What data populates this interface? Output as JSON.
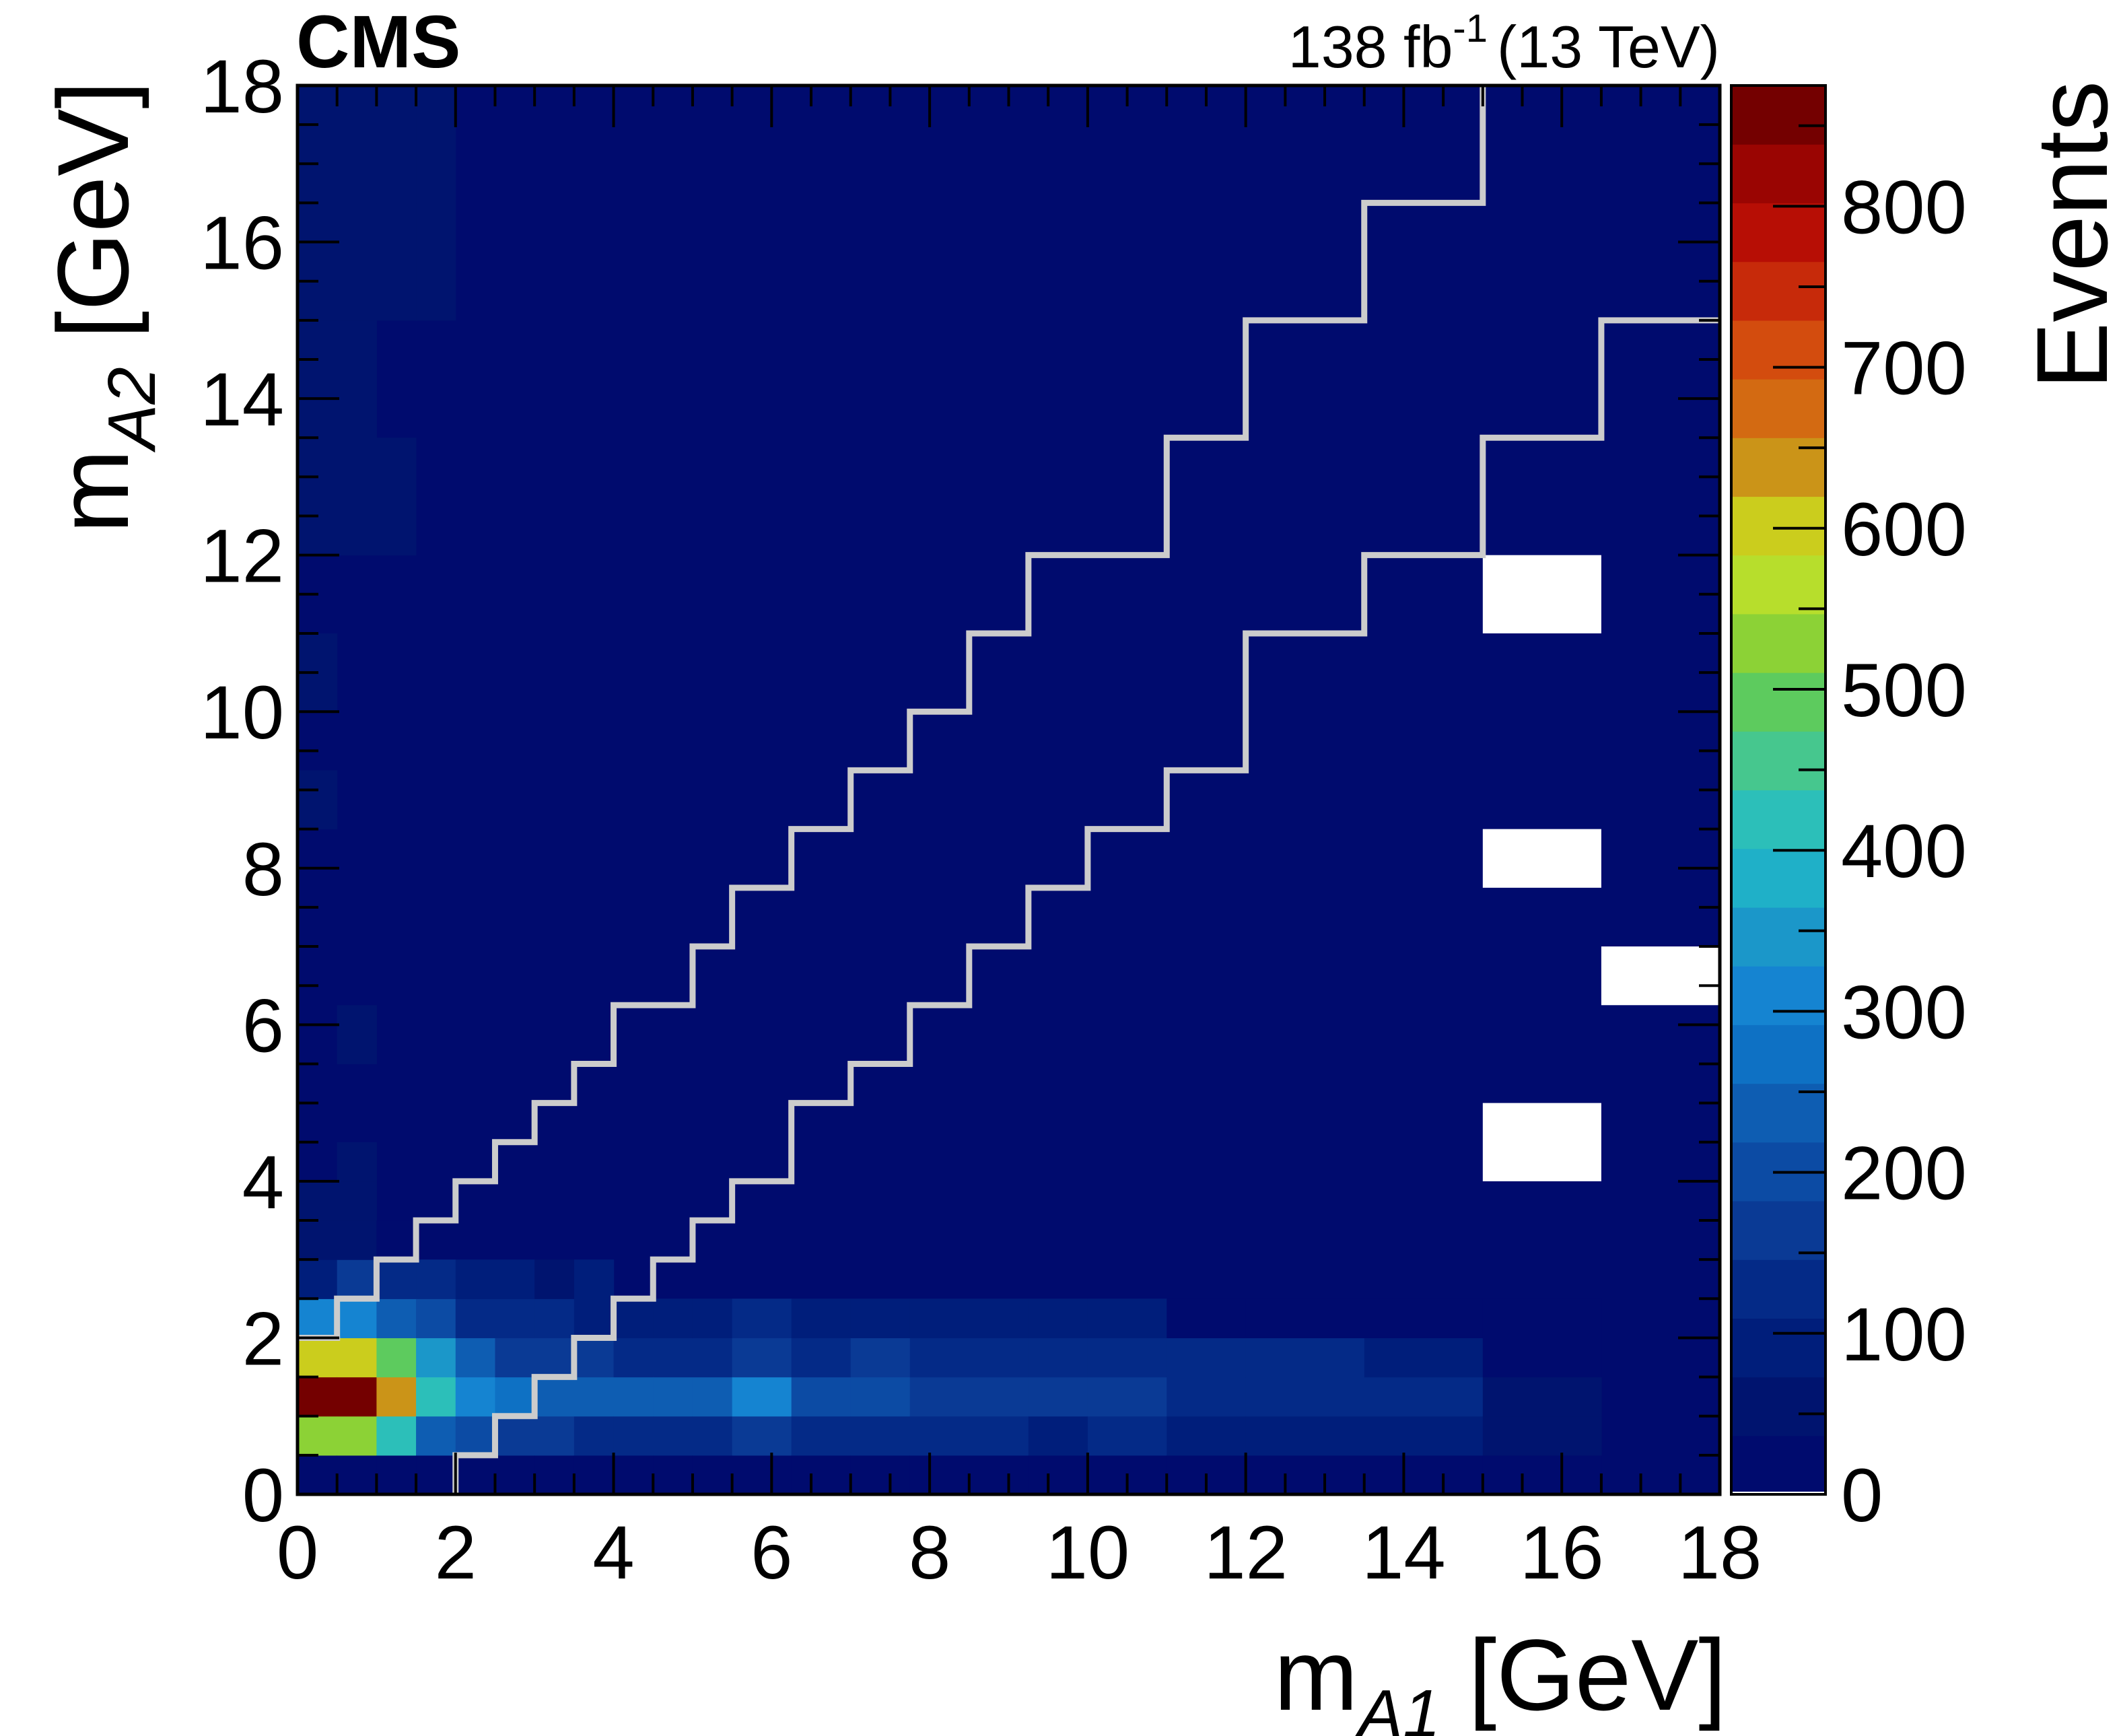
{
  "chart_data": {
    "type": "heatmap",
    "experiment": "CMS",
    "luminosity": {
      "main": "138 fb",
      "exp": "-1",
      "energy": "(13 TeV)"
    },
    "xlabel": {
      "base": "m",
      "sub": "A1",
      "unit": " [GeV]"
    },
    "ylabel": {
      "base": "m",
      "sub": "A2",
      "unit": " [GeV]"
    },
    "zlabel": "Events",
    "xlim": [
      0,
      18
    ],
    "ylim": [
      0,
      18
    ],
    "zlim": [
      0,
      875
    ],
    "xticks": [
      "0",
      "2",
      "4",
      "6",
      "8",
      "10",
      "12",
      "14",
      "16",
      "18"
    ],
    "yticks": [
      "0",
      "2",
      "4",
      "6",
      "8",
      "10",
      "12",
      "14",
      "16",
      "18"
    ],
    "zticks": [
      "0",
      "100",
      "200",
      "300",
      "400",
      "500",
      "600",
      "700",
      "800"
    ],
    "x_bin_edges": [
      0,
      0.5,
      1,
      1.5,
      2,
      2.5,
      3,
      3.5,
      4,
      4.5,
      5,
      5.5,
      6.25,
      7,
      7.75,
      8.5,
      9.25,
      10,
      11,
      12,
      13.5,
      15,
      16.5,
      18
    ],
    "y_bin_edges": [
      0,
      0.5,
      1,
      1.5,
      2,
      2.5,
      3,
      3.5,
      4,
      4.5,
      5,
      5.5,
      6.25,
      7,
      7.75,
      8.5,
      9.25,
      10,
      11,
      12,
      13.5,
      15,
      16.5,
      18
    ],
    "background_value": 15,
    "cells": [
      {
        "x": 0,
        "y": 0,
        "v": 15
      },
      {
        "x": 0,
        "y": 1,
        "v": 540
      },
      {
        "x": 0,
        "y": 2,
        "v": 860
      },
      {
        "x": 0,
        "y": 3,
        "v": 600
      },
      {
        "x": 0,
        "y": 4,
        "v": 300
      },
      {
        "x": 0,
        "y": 5,
        "v": 95
      },
      {
        "x": 0,
        "y": 6,
        "v": 50
      },
      {
        "x": 0,
        "y": 7,
        "v": 40
      },
      {
        "x": 1,
        "y": 0,
        "v": 15
      },
      {
        "x": 1,
        "y": 1,
        "v": 540
      },
      {
        "x": 1,
        "y": 2,
        "v": 860
      },
      {
        "x": 1,
        "y": 3,
        "v": 600
      },
      {
        "x": 1,
        "y": 4,
        "v": 300
      },
      {
        "x": 1,
        "y": 5,
        "v": 160
      },
      {
        "x": 1,
        "y": 6,
        "v": 50
      },
      {
        "x": 1,
        "y": 7,
        "v": 40
      },
      {
        "x": 2,
        "y": 0,
        "v": 15
      },
      {
        "x": 2,
        "y": 1,
        "v": 420
      },
      {
        "x": 2,
        "y": 2,
        "v": 620
      },
      {
        "x": 2,
        "y": 3,
        "v": 480
      },
      {
        "x": 2,
        "y": 4,
        "v": 240
      },
      {
        "x": 2,
        "y": 5,
        "v": 110
      },
      {
        "x": 2,
        "y": 6,
        "v": 35
      },
      {
        "x": 3,
        "y": 0,
        "v": 15
      },
      {
        "x": 3,
        "y": 1,
        "v": 240
      },
      {
        "x": 3,
        "y": 2,
        "v": 420
      },
      {
        "x": 3,
        "y": 3,
        "v": 340
      },
      {
        "x": 3,
        "y": 4,
        "v": 200
      },
      {
        "x": 3,
        "y": 5,
        "v": 110
      },
      {
        "x": 4,
        "y": 0,
        "v": 15
      },
      {
        "x": 4,
        "y": 1,
        "v": 200
      },
      {
        "x": 4,
        "y": 2,
        "v": 320
      },
      {
        "x": 4,
        "y": 3,
        "v": 240
      },
      {
        "x": 4,
        "y": 4,
        "v": 120
      },
      {
        "x": 4,
        "y": 5,
        "v": 80
      },
      {
        "x": 5,
        "y": 0,
        "v": 15
      },
      {
        "x": 5,
        "y": 1,
        "v": 160
      },
      {
        "x": 5,
        "y": 2,
        "v": 280
      },
      {
        "x": 5,
        "y": 3,
        "v": 160
      },
      {
        "x": 5,
        "y": 4,
        "v": 120
      },
      {
        "x": 5,
        "y": 5,
        "v": 80
      },
      {
        "x": 6,
        "y": 0,
        "v": 15
      },
      {
        "x": 6,
        "y": 1,
        "v": 160
      },
      {
        "x": 6,
        "y": 2,
        "v": 220
      },
      {
        "x": 6,
        "y": 3,
        "v": 160
      },
      {
        "x": 6,
        "y": 4,
        "v": 120
      },
      {
        "x": 6,
        "y": 5,
        "v": 40
      },
      {
        "x": 7,
        "y": 0,
        "v": 15
      },
      {
        "x": 7,
        "y": 1,
        "v": 110
      },
      {
        "x": 7,
        "y": 2,
        "v": 220
      },
      {
        "x": 7,
        "y": 3,
        "v": 160
      },
      {
        "x": 7,
        "y": 4,
        "v": 90
      },
      {
        "x": 7,
        "y": 5,
        "v": 80
      },
      {
        "x": 8,
        "y": 0,
        "v": 15
      },
      {
        "x": 8,
        "y": 1,
        "v": 110
      },
      {
        "x": 8,
        "y": 2,
        "v": 220
      },
      {
        "x": 8,
        "y": 3,
        "v": 120
      },
      {
        "x": 8,
        "y": 4,
        "v": 90
      },
      {
        "x": 9,
        "y": 0,
        "v": 15
      },
      {
        "x": 9,
        "y": 1,
        "v": 110
      },
      {
        "x": 9,
        "y": 2,
        "v": 220
      },
      {
        "x": 9,
        "y": 3,
        "v": 120
      },
      {
        "x": 9,
        "y": 4,
        "v": 90
      },
      {
        "x": 10,
        "y": 0,
        "v": 15
      },
      {
        "x": 10,
        "y": 1,
        "v": 110
      },
      {
        "x": 10,
        "y": 2,
        "v": 220
      },
      {
        "x": 10,
        "y": 3,
        "v": 120
      },
      {
        "x": 10,
        "y": 4,
        "v": 90
      },
      {
        "x": 11,
        "y": 0,
        "v": 15
      },
      {
        "x": 11,
        "y": 1,
        "v": 160
      },
      {
        "x": 11,
        "y": 2,
        "v": 300
      },
      {
        "x": 11,
        "y": 3,
        "v": 160
      },
      {
        "x": 11,
        "y": 4,
        "v": 120
      },
      {
        "x": 12,
        "y": 0,
        "v": 15
      },
      {
        "x": 12,
        "y": 1,
        "v": 110
      },
      {
        "x": 12,
        "y": 2,
        "v": 200
      },
      {
        "x": 12,
        "y": 3,
        "v": 120
      },
      {
        "x": 12,
        "y": 4,
        "v": 90
      },
      {
        "x": 13,
        "y": 0,
        "v": 15
      },
      {
        "x": 13,
        "y": 1,
        "v": 110
      },
      {
        "x": 13,
        "y": 2,
        "v": 200
      },
      {
        "x": 13,
        "y": 3,
        "v": 160
      },
      {
        "x": 13,
        "y": 4,
        "v": 90
      },
      {
        "x": 14,
        "y": 0,
        "v": 15
      },
      {
        "x": 14,
        "y": 1,
        "v": 110
      },
      {
        "x": 14,
        "y": 2,
        "v": 160
      },
      {
        "x": 14,
        "y": 3,
        "v": 130
      },
      {
        "x": 14,
        "y": 4,
        "v": 90
      },
      {
        "x": 15,
        "y": 0,
        "v": 15
      },
      {
        "x": 15,
        "y": 1,
        "v": 110
      },
      {
        "x": 15,
        "y": 2,
        "v": 160
      },
      {
        "x": 15,
        "y": 3,
        "v": 130
      },
      {
        "x": 15,
        "y": 4,
        "v": 90
      },
      {
        "x": 16,
        "y": 0,
        "v": 15
      },
      {
        "x": 16,
        "y": 1,
        "v": 80
      },
      {
        "x": 16,
        "y": 2,
        "v": 160
      },
      {
        "x": 16,
        "y": 3,
        "v": 130
      },
      {
        "x": 16,
        "y": 4,
        "v": 90
      },
      {
        "x": 17,
        "y": 0,
        "v": 15
      },
      {
        "x": 17,
        "y": 1,
        "v": 130
      },
      {
        "x": 17,
        "y": 2,
        "v": 160
      },
      {
        "x": 17,
        "y": 3,
        "v": 130
      },
      {
        "x": 17,
        "y": 4,
        "v": 90
      },
      {
        "x": 18,
        "y": 0,
        "v": 15
      },
      {
        "x": 18,
        "y": 1,
        "v": 80
      },
      {
        "x": 18,
        "y": 2,
        "v": 130
      },
      {
        "x": 18,
        "y": 3,
        "v": 110
      },
      {
        "x": 18,
        "y": 4,
        "v": 15
      },
      {
        "x": 19,
        "y": 0,
        "v": 15
      },
      {
        "x": 19,
        "y": 1,
        "v": 80
      },
      {
        "x": 19,
        "y": 2,
        "v": 110
      },
      {
        "x": 19,
        "y": 3,
        "v": 110
      },
      {
        "x": 19,
        "y": 4,
        "v": 15
      },
      {
        "x": 20,
        "y": 0,
        "v": 15
      },
      {
        "x": 20,
        "y": 1,
        "v": 80
      },
      {
        "x": 20,
        "y": 2,
        "v": 110
      },
      {
        "x": 20,
        "y": 3,
        "v": 90
      },
      {
        "x": 20,
        "y": 4,
        "v": 15
      },
      {
        "x": 21,
        "y": 0,
        "v": 15
      },
      {
        "x": 21,
        "y": 1,
        "v": 40
      },
      {
        "x": 21,
        "y": 2,
        "v": 70
      },
      {
        "x": 21,
        "y": 3,
        "v": 15
      },
      {
        "x": 21,
        "y": 4,
        "v": 15
      },
      {
        "x": 0,
        "y": 15,
        "v": 60
      },
      {
        "x": 0,
        "y": 17,
        "v": 50
      },
      {
        "x": 0,
        "y": 19,
        "v": 50
      },
      {
        "x": 0,
        "y": 20,
        "v": 50
      },
      {
        "x": 0,
        "y": 21,
        "v": 50
      },
      {
        "x": 0,
        "y": 22,
        "v": 50
      },
      {
        "x": 1,
        "y": 8,
        "v": 50
      },
      {
        "x": 1,
        "y": 11,
        "v": 45
      },
      {
        "x": 1,
        "y": 19,
        "v": 50
      },
      {
        "x": 1,
        "y": 20,
        "v": 50
      },
      {
        "x": 1,
        "y": 21,
        "v": 50
      },
      {
        "x": 1,
        "y": 22,
        "v": 50
      },
      {
        "x": 2,
        "y": 19,
        "v": 50
      },
      {
        "x": 2,
        "y": 21,
        "v": 50
      },
      {
        "x": 2,
        "y": 22,
        "v": 50
      },
      {
        "x": 3,
        "y": 21,
        "v": 50
      },
      {
        "x": 3,
        "y": 22,
        "v": 50
      }
    ],
    "empty_cells": [
      {
        "x0": 15,
        "x1": 16.5,
        "y0": 4,
        "y1": 5
      },
      {
        "x0": 15,
        "x1": 16.5,
        "y0": 7.75,
        "y1": 8.5
      },
      {
        "x0": 16.5,
        "x1": 18,
        "y0": 6.25,
        "y1": 7
      },
      {
        "x0": 15,
        "x1": 16.5,
        "y0": 11,
        "y1": 12
      }
    ],
    "contours": [
      {
        "color": "#cccccc",
        "points": [
          [
            0,
            2
          ],
          [
            0.5,
            2
          ],
          [
            0.5,
            2.5
          ],
          [
            1,
            2.5
          ],
          [
            1,
            3
          ],
          [
            1.5,
            3
          ],
          [
            1.5,
            3.5
          ],
          [
            2,
            3.5
          ],
          [
            2,
            4
          ],
          [
            2.5,
            4
          ],
          [
            2.5,
            4.5
          ],
          [
            3,
            4.5
          ],
          [
            3,
            5
          ],
          [
            3.5,
            5
          ],
          [
            3.5,
            5.5
          ],
          [
            4,
            5.5
          ],
          [
            4,
            6.25
          ],
          [
            5,
            6.25
          ],
          [
            5,
            7
          ],
          [
            5.5,
            7
          ],
          [
            5.5,
            7.75
          ],
          [
            6.25,
            7.75
          ],
          [
            6.25,
            8.5
          ],
          [
            7,
            8.5
          ],
          [
            7,
            9.25
          ],
          [
            7.75,
            9.25
          ],
          [
            7.75,
            10
          ],
          [
            8.5,
            10
          ],
          [
            8.5,
            11
          ],
          [
            9.25,
            11
          ],
          [
            9.25,
            12
          ],
          [
            11,
            12
          ],
          [
            11,
            13.5
          ],
          [
            12,
            13.5
          ],
          [
            12,
            15
          ],
          [
            13.5,
            15
          ],
          [
            13.5,
            16.5
          ],
          [
            15,
            16.5
          ],
          [
            15,
            18
          ]
        ]
      },
      {
        "color": "#cccccc",
        "points": [
          [
            2,
            0
          ],
          [
            2,
            0.5
          ],
          [
            2.5,
            0.5
          ],
          [
            2.5,
            1
          ],
          [
            3,
            1
          ],
          [
            3,
            1.5
          ],
          [
            3.5,
            1.5
          ],
          [
            3.5,
            2
          ],
          [
            4,
            2
          ],
          [
            4,
            2.5
          ],
          [
            4.5,
            2.5
          ],
          [
            4.5,
            3
          ],
          [
            5,
            3
          ],
          [
            5,
            3.5
          ],
          [
            5.5,
            3.5
          ],
          [
            5.5,
            4
          ],
          [
            6.25,
            4
          ],
          [
            6.25,
            5
          ],
          [
            7,
            5
          ],
          [
            7,
            5.5
          ],
          [
            7.75,
            5.5
          ],
          [
            7.75,
            6.25
          ],
          [
            8.5,
            6.25
          ],
          [
            8.5,
            7
          ],
          [
            9.25,
            7
          ],
          [
            9.25,
            7.75
          ],
          [
            10,
            7.75
          ],
          [
            10,
            8.5
          ],
          [
            11,
            8.5
          ],
          [
            11,
            9.25
          ],
          [
            12,
            9.25
          ],
          [
            12,
            11
          ],
          [
            13.5,
            11
          ],
          [
            13.5,
            12
          ],
          [
            15,
            12
          ],
          [
            15,
            13.5
          ],
          [
            16.5,
            13.5
          ],
          [
            16.5,
            15
          ],
          [
            18,
            15
          ]
        ]
      }
    ],
    "palette": [
      "#000b6e",
      "#00146f",
      "#001e7b",
      "#042a87",
      "#0a3a95",
      "#0c4ba4",
      "#0e5db2",
      "#0e71c4",
      "#1584d1",
      "#1b97c9",
      "#1fb0c8",
      "#2cbfb9",
      "#46c78e",
      "#5dcb5e",
      "#8cd236",
      "#b7de2c",
      "#cbcd1d",
      "#cb9418",
      "#d36a12",
      "#d34c0e",
      "#c72a0a",
      "#b70e05",
      "#9a0502",
      "#740000"
    ]
  }
}
